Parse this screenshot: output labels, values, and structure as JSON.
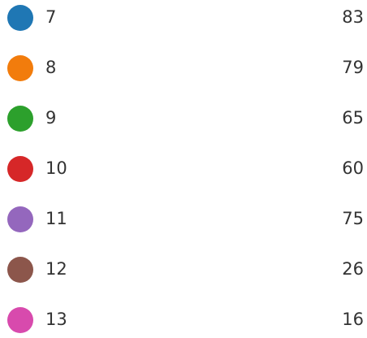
{
  "items": [
    {
      "label": "7",
      "value": 83,
      "color": "#1f77b4"
    },
    {
      "label": "8",
      "value": 79,
      "color": "#f27c0c"
    },
    {
      "label": "9",
      "value": 65,
      "color": "#2ca02c"
    },
    {
      "label": "10",
      "value": 60,
      "color": "#d62728"
    },
    {
      "label": "11",
      "value": 75,
      "color": "#9467bd"
    },
    {
      "label": "12",
      "value": 26,
      "color": "#8c564b"
    },
    {
      "label": "13",
      "value": 16,
      "color": "#d84aad"
    }
  ]
}
